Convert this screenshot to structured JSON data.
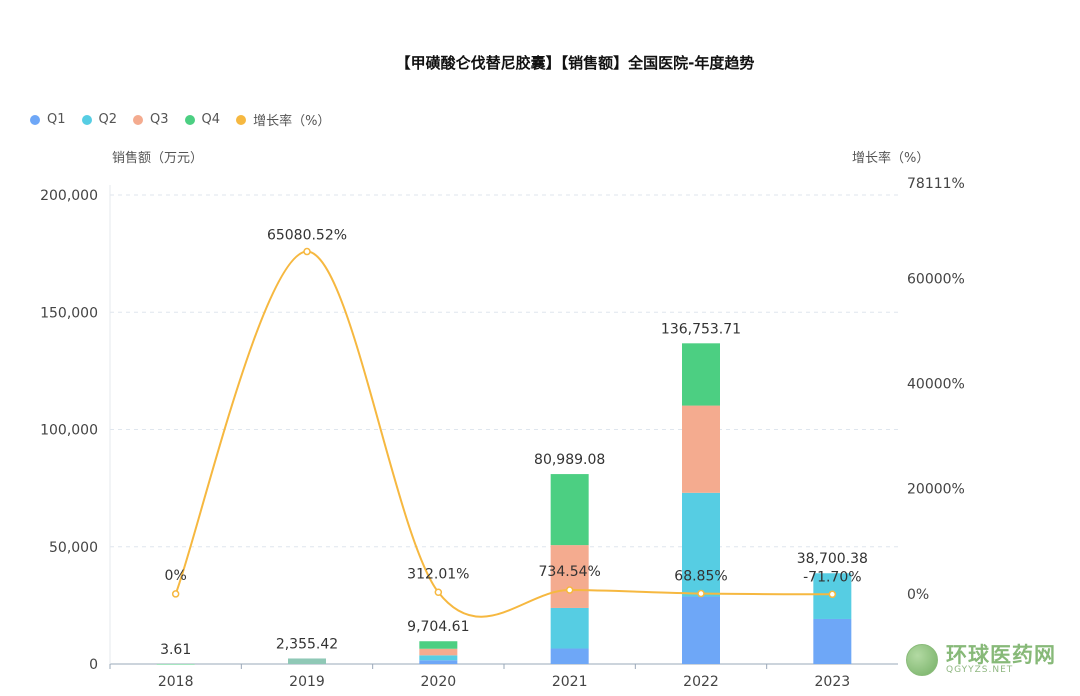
{
  "chart_data": {
    "type": "bar",
    "title": "【甲磺酸仑伐替尼胶囊】【销售额】全国医院-年度趋势",
    "categories": [
      "2018",
      "2019",
      "2020",
      "2021",
      "2022",
      "2023"
    ],
    "series": [
      {
        "name": "Q1",
        "color": "#6ea7f7",
        "values": [
          0.9,
          0,
          1600,
          6600,
          28800,
          19200
        ]
      },
      {
        "name": "Q2",
        "color": "#56cde3",
        "values": [
          0.9,
          0,
          2100,
          17300,
          44200,
          19500
        ]
      },
      {
        "name": "Q3",
        "color": "#f4ab8f",
        "values": [
          0.9,
          0,
          2800,
          26800,
          37200,
          0
        ]
      },
      {
        "name": "Q4",
        "color": "#4ccf82",
        "values": [
          0.91,
          2355.42,
          3204.61,
          30289.08,
          26553.71,
          0
        ]
      }
    ],
    "totals": [
      "3.61",
      "2,355.42",
      "9,704.61",
      "80,989.08",
      "136,753.71",
      "38,700.38"
    ],
    "line_series": {
      "name": "增长率（%）",
      "color": "#f6b840",
      "values": [
        0,
        65080.52,
        312.01,
        734.54,
        68.85,
        -71.7
      ],
      "labels": [
        "0%",
        "65080.52%",
        "312.01%",
        "734.54%",
        "68.85%",
        "-71.70%"
      ]
    },
    "legend": [
      "Q1",
      "Q2",
      "Q3",
      "Q4",
      "增长率（%）"
    ],
    "legend_position": "top-left",
    "left_axis": {
      "title": "销售额（万元）",
      "ylim": [
        0,
        200000
      ],
      "ticks": [
        0,
        50000,
        100000,
        150000,
        200000
      ],
      "tick_labels": [
        "0",
        "50,000",
        "100,000",
        "150,000",
        "200,000"
      ]
    },
    "right_axis": {
      "title": "增长率（%）",
      "ylim": [
        -13322,
        78111
      ],
      "ticks": [
        0,
        20000,
        40000,
        60000,
        78111
      ],
      "tick_labels": [
        "0%",
        "20000%",
        "40000%",
        "60000%",
        "78111%"
      ]
    },
    "grid": true
  },
  "watermark": {
    "name": "环球医药网",
    "url": "QGYYZS.NET"
  }
}
